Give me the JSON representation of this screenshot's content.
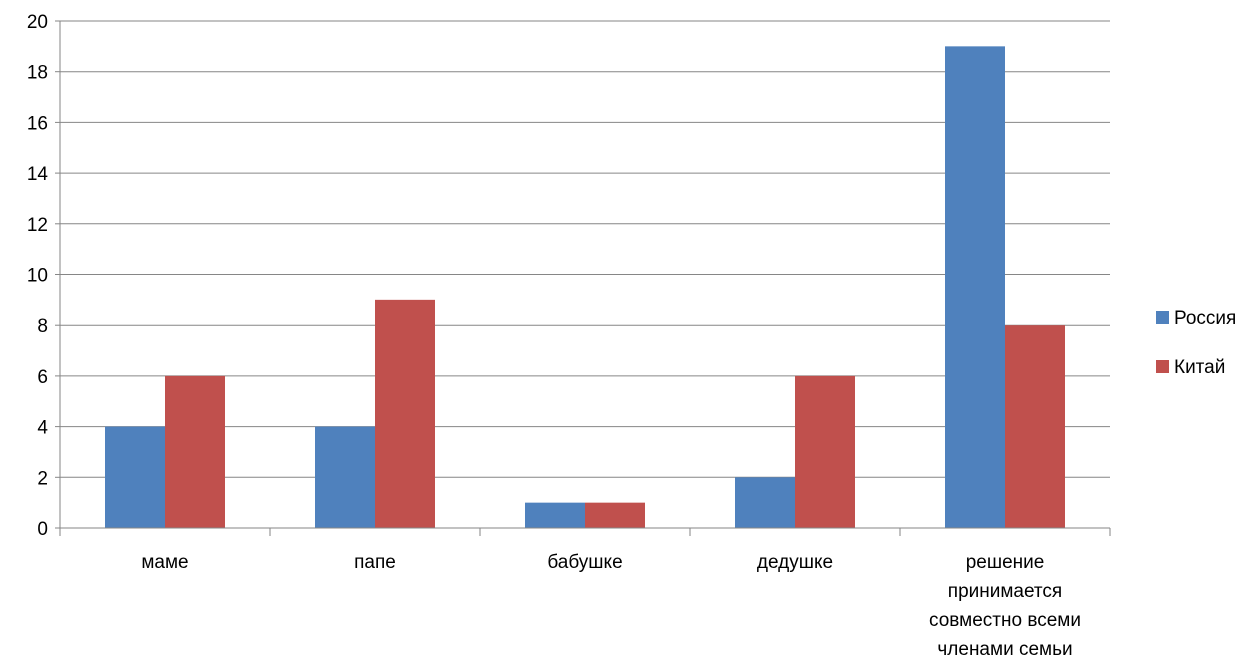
{
  "chart_data": {
    "type": "bar",
    "title": "",
    "xlabel": "",
    "ylabel": "",
    "categories": [
      [
        "маме"
      ],
      [
        "папе"
      ],
      [
        "бабушке"
      ],
      [
        "дедушке"
      ],
      [
        "решение",
        "принимается",
        "совместно всеми",
        "членами семьи"
      ]
    ],
    "series": [
      {
        "name": "Россия",
        "color": "#4F81BD",
        "values": [
          4,
          4,
          1,
          2,
          19
        ]
      },
      {
        "name": "Китай",
        "color": "#C0504D",
        "values": [
          6,
          9,
          1,
          6,
          8
        ]
      }
    ],
    "ylim": [
      0,
      20
    ],
    "yticks": [
      "0",
      "2",
      "4",
      "6",
      "8",
      "10",
      "12",
      "14",
      "16",
      "18",
      "20"
    ],
    "grid": true,
    "legend": "right"
  }
}
